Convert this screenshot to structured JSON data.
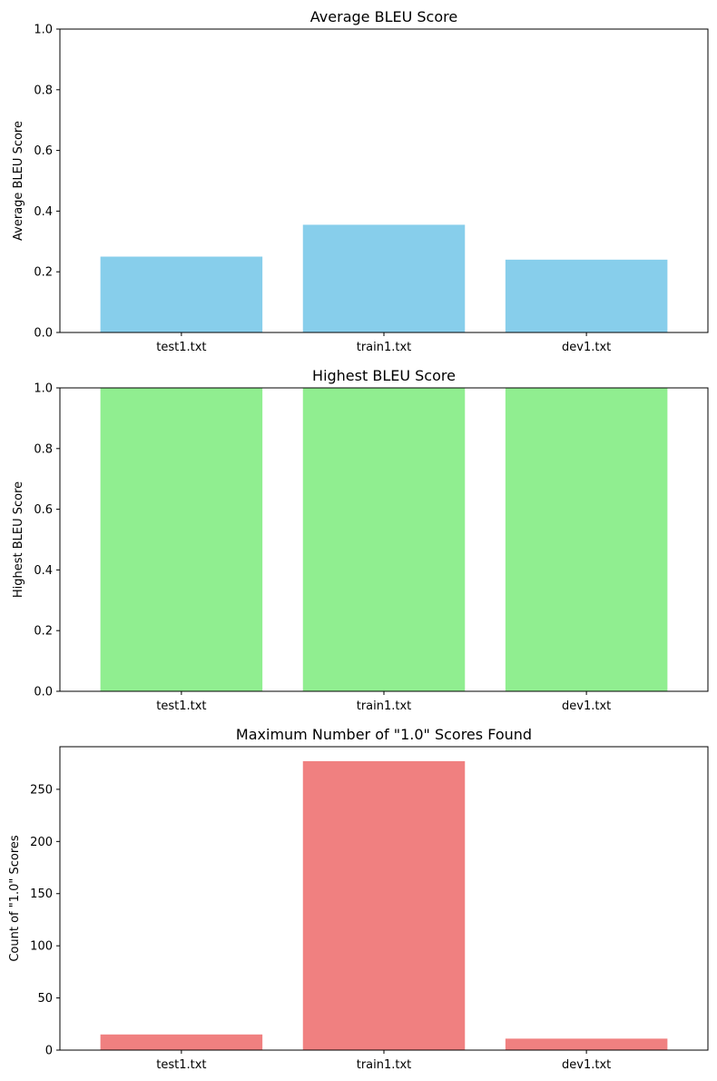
{
  "chart_data": [
    {
      "type": "bar",
      "title": "Average BLEU Score",
      "xlabel": "",
      "ylabel": "Average BLEU Score",
      "categories": [
        "test1.txt",
        "train1.txt",
        "dev1.txt"
      ],
      "values": [
        0.25,
        0.355,
        0.24
      ],
      "ylim": [
        0,
        1
      ],
      "yticks": [
        0.0,
        0.2,
        0.4,
        0.6,
        0.8,
        1.0
      ],
      "ytick_labels": [
        "0.0",
        "0.2",
        "0.4",
        "0.6",
        "0.8",
        "1.0"
      ],
      "color": "#87ceeb",
      "grid": false,
      "legend": false
    },
    {
      "type": "bar",
      "title": "Highest BLEU Score",
      "xlabel": "",
      "ylabel": "Highest BLEU Score",
      "categories": [
        "test1.txt",
        "train1.txt",
        "dev1.txt"
      ],
      "values": [
        1.0,
        1.0,
        1.0
      ],
      "ylim": [
        0,
        1
      ],
      "yticks": [
        0.0,
        0.2,
        0.4,
        0.6,
        0.8,
        1.0
      ],
      "ytick_labels": [
        "0.0",
        "0.2",
        "0.4",
        "0.6",
        "0.8",
        "1.0"
      ],
      "color": "#90ee90",
      "grid": false,
      "legend": false
    },
    {
      "type": "bar",
      "title": "Maximum Number of \"1.0\" Scores Found",
      "xlabel": "",
      "ylabel": "Count of \"1.0\" Scores",
      "categories": [
        "test1.txt",
        "train1.txt",
        "dev1.txt"
      ],
      "values": [
        15,
        277,
        11
      ],
      "ylim": [
        0,
        290.85
      ],
      "yticks": [
        0,
        50,
        100,
        150,
        200,
        250
      ],
      "ytick_labels": [
        "0",
        "50",
        "100",
        "150",
        "200",
        "250"
      ],
      "color": "#f08080",
      "grid": false,
      "legend": false
    }
  ]
}
